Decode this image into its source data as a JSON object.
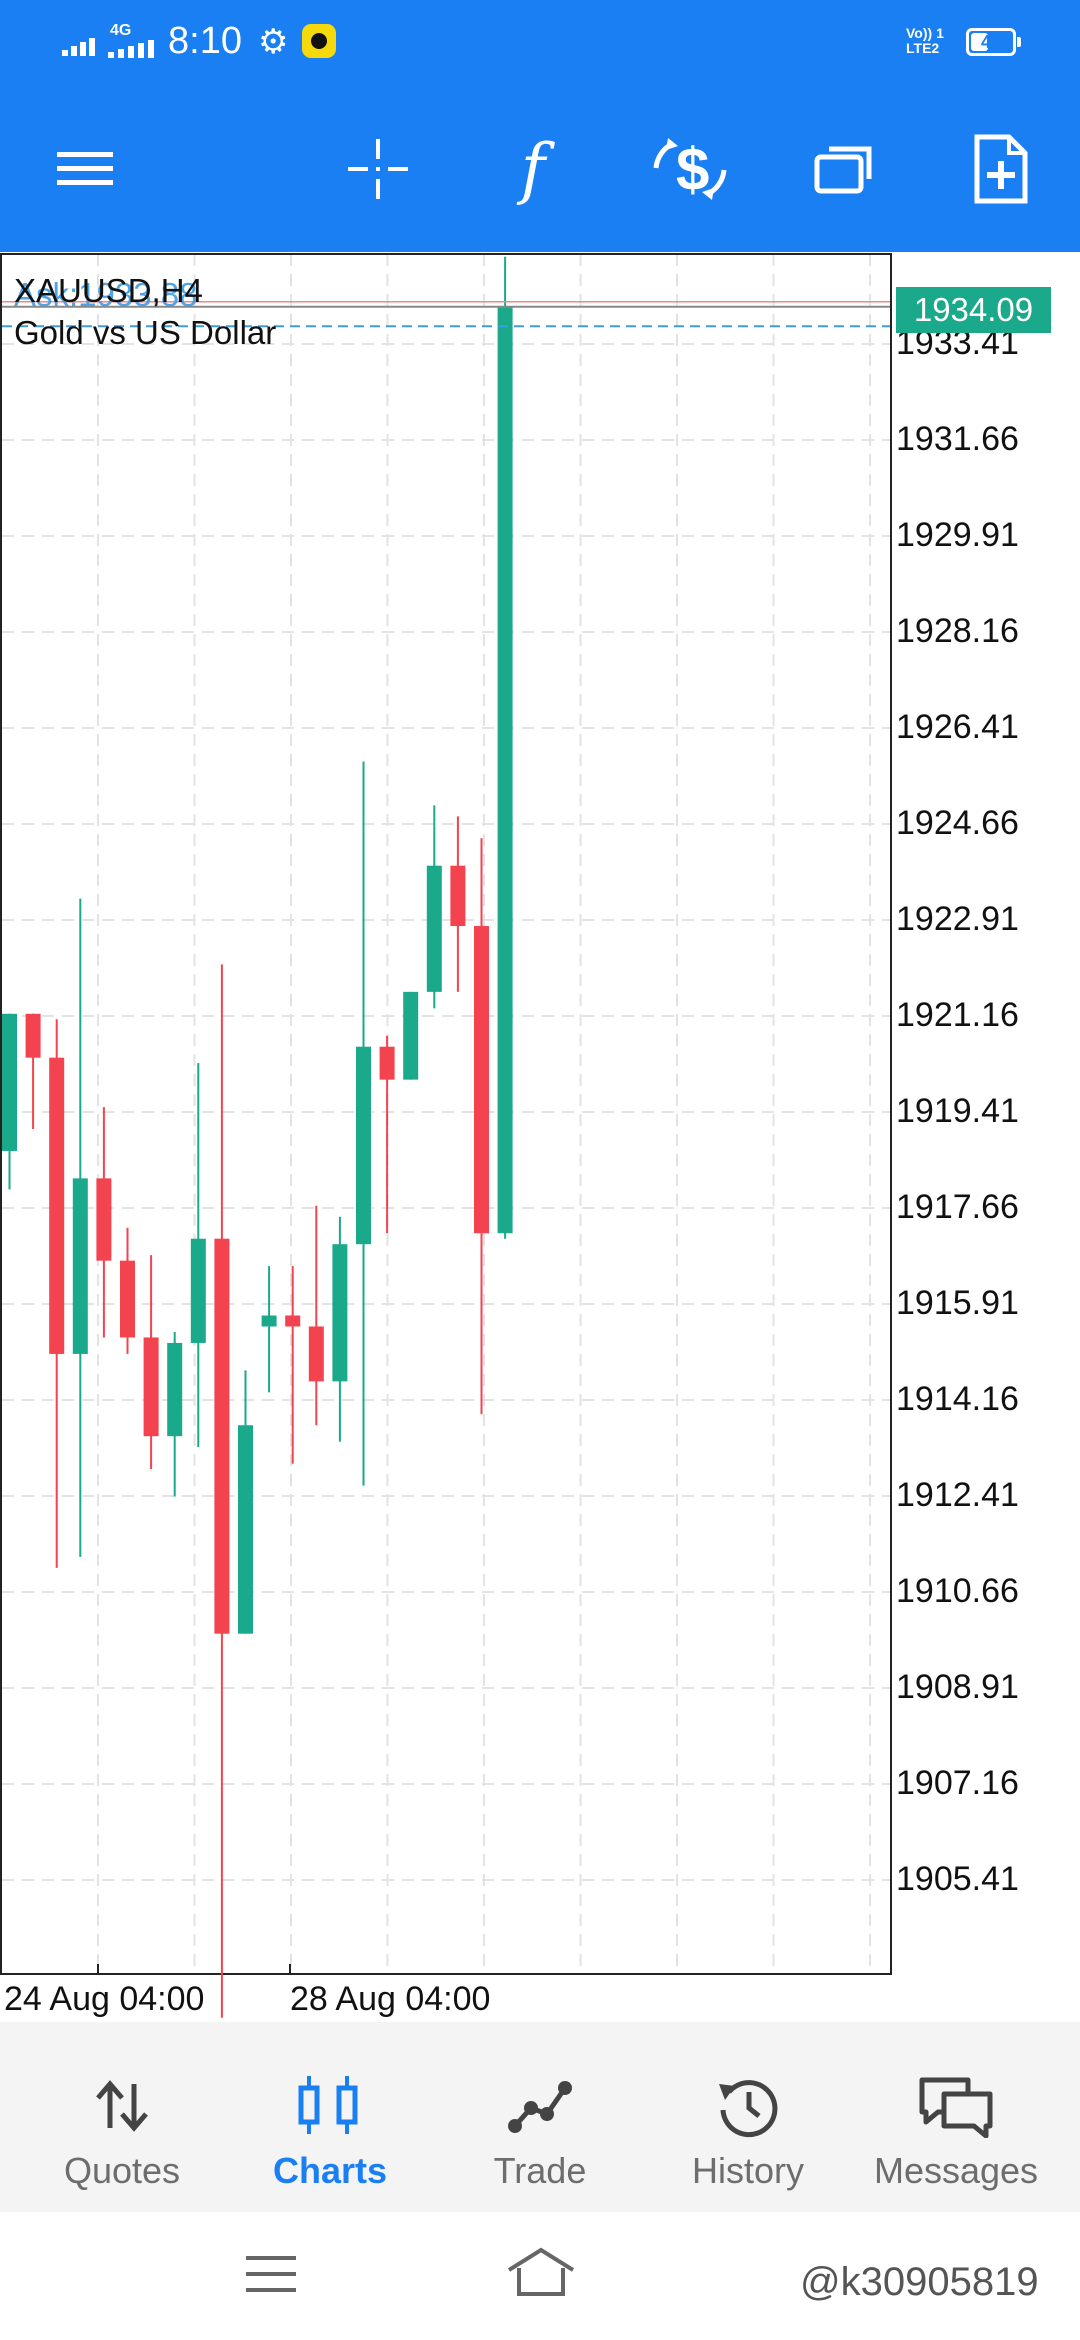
{
  "status_bar": {
    "network": "4G",
    "time": "8:10",
    "volte": "Vo)) 1",
    "lte": "LTE2",
    "battery": "42",
    "battery_level": 0.42
  },
  "toolbar": {
    "icons": [
      "menu-icon",
      "crosshair-icon",
      "indicators-icon",
      "trade-icon",
      "windows-icon",
      "new-chart-icon"
    ],
    "indicator_glyph": "f"
  },
  "chart": {
    "symbol": "XAUUSD,H4",
    "description": "Gold vs US Dollar",
    "ask_ghost": "Ask:1933.88",
    "current_price": "1934.09",
    "price_labels": [
      "1933.41",
      "1931.66",
      "1929.91",
      "1928.16",
      "1926.41",
      "1924.66",
      "1922.91",
      "1921.16",
      "1919.41",
      "1917.66",
      "1915.91",
      "1914.16",
      "1912.41",
      "1910.66",
      "1908.91",
      "1907.16",
      "1905.41"
    ],
    "date_labels": [
      "24 Aug 04:00",
      "28 Aug 04:00"
    ],
    "colors": {
      "bull": "#1aa98a",
      "bear": "#f2434f",
      "grid": "#e3e3e3",
      "ask_line": "#3d9be3"
    }
  },
  "chart_data": {
    "type": "candlestick",
    "title": "XAUUSD,H4",
    "subtitle": "Gold vs US Dollar",
    "ylim": [
      1903.0,
      1935.0
    ],
    "y_ticks": [
      1933.41,
      1931.66,
      1929.91,
      1928.16,
      1926.41,
      1924.66,
      1922.91,
      1921.16,
      1919.41,
      1917.66,
      1915.91,
      1914.16,
      1912.41,
      1910.66,
      1908.91,
      1907.16,
      1905.41
    ],
    "x_tick_labels": [
      "24 Aug 04:00",
      "28 Aug 04:00"
    ],
    "current_price": 1934.09,
    "ask": 1933.88,
    "candles": [
      {
        "o": 1918.7,
        "h": 1921.2,
        "l": 1918.0,
        "c": 1921.2
      },
      {
        "o": 1921.2,
        "h": 1921.2,
        "l": 1919.1,
        "c": 1920.4
      },
      {
        "o": 1920.4,
        "h": 1921.1,
        "l": 1911.1,
        "c": 1915.0
      },
      {
        "o": 1915.0,
        "h": 1923.3,
        "l": 1911.3,
        "c": 1918.2
      },
      {
        "o": 1918.2,
        "h": 1919.5,
        "l": 1915.3,
        "c": 1916.7
      },
      {
        "o": 1916.7,
        "h": 1917.3,
        "l": 1915.0,
        "c": 1915.3
      },
      {
        "o": 1915.3,
        "h": 1916.8,
        "l": 1912.9,
        "c": 1913.5
      },
      {
        "o": 1913.5,
        "h": 1915.4,
        "l": 1912.4,
        "c": 1915.2
      },
      {
        "o": 1915.2,
        "h": 1920.3,
        "l": 1913.3,
        "c": 1917.1
      },
      {
        "o": 1917.1,
        "h": 1922.1,
        "l": 1902.9,
        "c": 1909.9
      },
      {
        "o": 1909.9,
        "h": 1914.7,
        "l": 1909.9,
        "c": 1913.7
      },
      {
        "o": 1915.5,
        "h": 1916.6,
        "l": 1914.3,
        "c": 1915.7
      },
      {
        "o": 1915.7,
        "h": 1916.6,
        "l": 1913.0,
        "c": 1915.5
      },
      {
        "o": 1915.5,
        "h": 1917.7,
        "l": 1913.7,
        "c": 1914.5
      },
      {
        "o": 1914.5,
        "h": 1917.5,
        "l": 1913.4,
        "c": 1917.0
      },
      {
        "o": 1917.0,
        "h": 1925.8,
        "l": 1912.6,
        "c": 1920.6
      },
      {
        "o": 1920.6,
        "h": 1920.8,
        "l": 1917.2,
        "c": 1920.0
      },
      {
        "o": 1920.0,
        "h": 1921.6,
        "l": 1920.0,
        "c": 1921.6
      },
      {
        "o": 1921.6,
        "h": 1925.0,
        "l": 1921.3,
        "c": 1923.9
      },
      {
        "o": 1923.9,
        "h": 1924.8,
        "l": 1921.6,
        "c": 1922.8
      },
      {
        "o": 1922.8,
        "h": 1924.4,
        "l": 1913.9,
        "c": 1917.2
      },
      {
        "o": 1917.2,
        "h": 1935.0,
        "l": 1917.1,
        "c": 1934.1
      }
    ]
  },
  "bottom_nav": {
    "items": [
      {
        "label": "Quotes",
        "icon": "quotes-icon"
      },
      {
        "label": "Charts",
        "icon": "charts-icon",
        "active": true
      },
      {
        "label": "Trade",
        "icon": "trade-nav-icon"
      },
      {
        "label": "History",
        "icon": "history-icon"
      },
      {
        "label": "Messages",
        "icon": "messages-icon"
      }
    ]
  },
  "watermark": "@k30905819"
}
